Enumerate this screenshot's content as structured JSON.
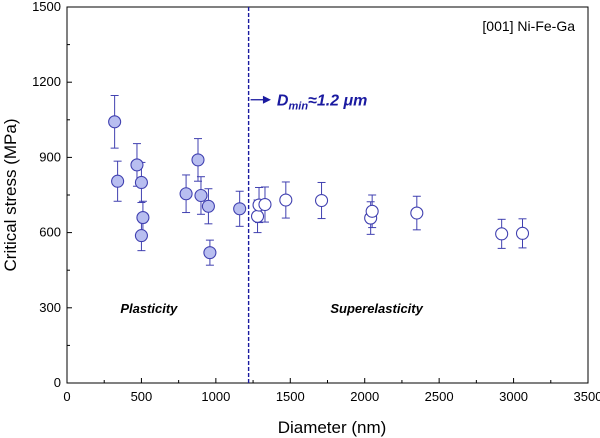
{
  "colors": {
    "marker_stroke": "#4040b0",
    "marker_fill_plastic": "#b8bef0",
    "marker_fill_superelastic": "#ffffff",
    "divider": "#1a1aa0",
    "annotation": "#1a1aa0"
  },
  "chart_data": {
    "type": "scatter",
    "title": "",
    "legend_text": "[001] Ni-Fe-Ga",
    "xlabel": "Diameter (nm)",
    "ylabel": "Critical stress (MPa)",
    "xlim": [
      0,
      3500
    ],
    "ylim": [
      0,
      1500
    ],
    "xticks": [
      0,
      500,
      1000,
      1500,
      2000,
      2500,
      3000,
      3500
    ],
    "yticks": [
      0,
      300,
      600,
      900,
      1200,
      1500
    ],
    "grid": false,
    "divider_x": 1220,
    "annotation": {
      "main": "D",
      "sub": "min",
      "tail": "≈1.2 μm",
      "arrow_from_x": 1220,
      "arrow_to_x": 1370,
      "y": 1130
    },
    "region_labels": [
      {
        "text": "Plasticity",
        "x": 550,
        "y": 300
      },
      {
        "text": "Superelasticity",
        "x": 2080,
        "y": 300
      }
    ],
    "series": [
      {
        "style": "filled",
        "points": [
          {
            "x": 320,
            "y": 1042,
            "err": 105
          },
          {
            "x": 340,
            "y": 805,
            "err": 80
          },
          {
            "x": 470,
            "y": 870,
            "err": 85
          },
          {
            "x": 500,
            "y": 800,
            "err": 80
          },
          {
            "x": 510,
            "y": 660,
            "err": 65
          },
          {
            "x": 500,
            "y": 588,
            "err": 60
          },
          {
            "x": 800,
            "y": 755,
            "err": 75
          },
          {
            "x": 880,
            "y": 890,
            "err": 85
          },
          {
            "x": 900,
            "y": 748,
            "err": 75
          },
          {
            "x": 950,
            "y": 705,
            "err": 70
          },
          {
            "x": 960,
            "y": 520,
            "err": 50
          },
          {
            "x": 1160,
            "y": 695,
            "err": 70
          }
        ]
      },
      {
        "style": "open",
        "points": [
          {
            "x": 1280,
            "y": 665,
            "err": 65
          },
          {
            "x": 1290,
            "y": 710,
            "err": 70
          },
          {
            "x": 1330,
            "y": 712,
            "err": 70
          },
          {
            "x": 1470,
            "y": 730,
            "err": 72
          },
          {
            "x": 1710,
            "y": 728,
            "err": 72
          },
          {
            "x": 2040,
            "y": 658,
            "err": 65
          },
          {
            "x": 2050,
            "y": 685,
            "err": 65
          },
          {
            "x": 2350,
            "y": 678,
            "err": 67
          },
          {
            "x": 2920,
            "y": 595,
            "err": 58
          },
          {
            "x": 3060,
            "y": 597,
            "err": 58
          }
        ]
      }
    ]
  }
}
